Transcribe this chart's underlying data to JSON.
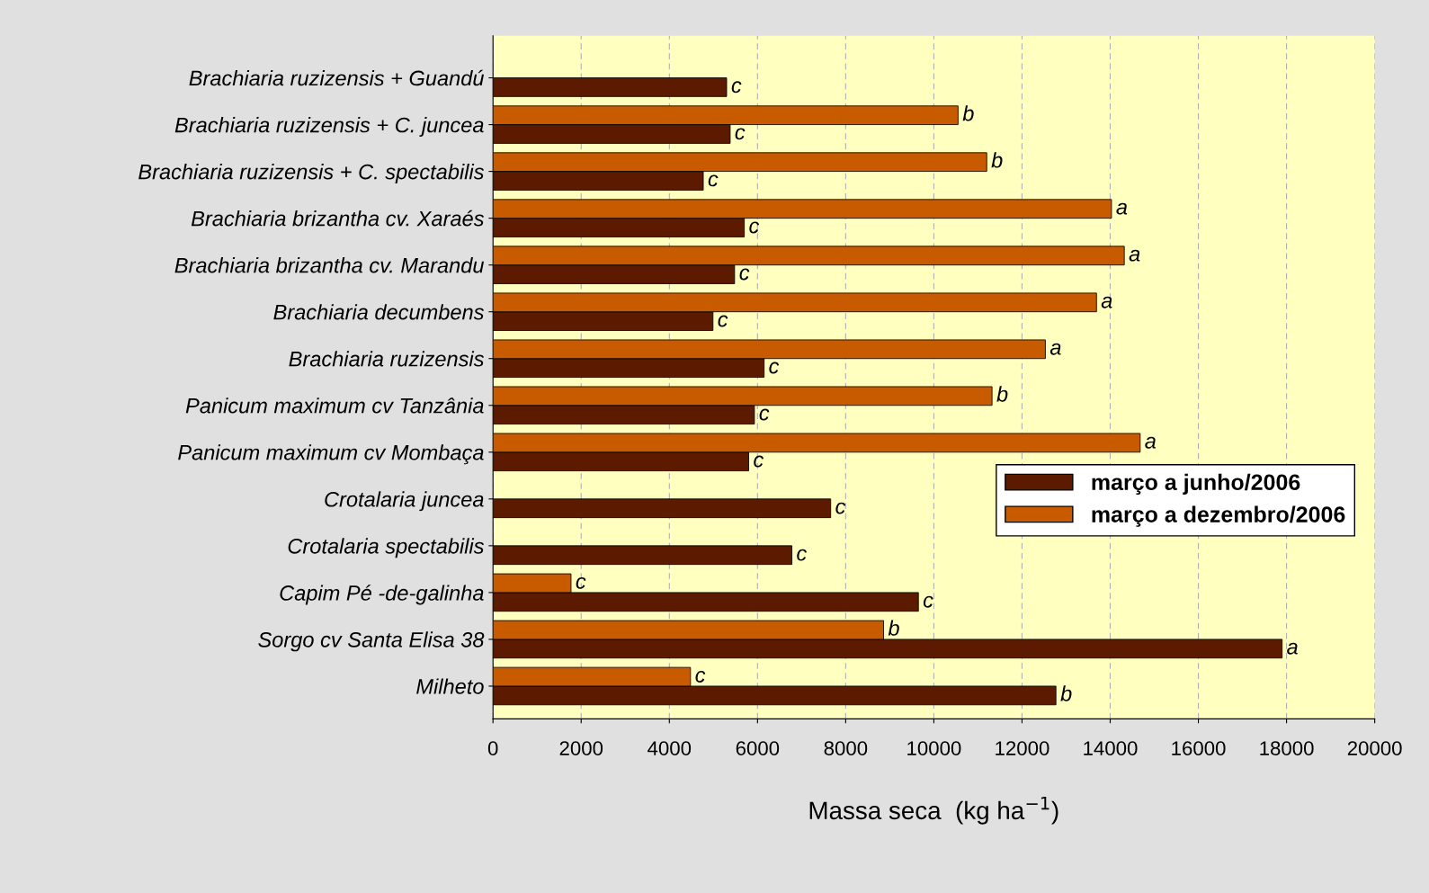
{
  "chart_data": {
    "type": "bar",
    "orientation": "horizontal",
    "xlabel": "Massa seca  (kg ha$^{−1}$)",
    "categories": [
      "Brachiaria ruzizensis + Guandú",
      "Brachiaria ruzizensis + C. juncea",
      "Brachiaria ruzizensis + C. spectabilis",
      "Brachiaria brizantha cv. Xaraés",
      "Brachiaria brizantha cv. Marandu",
      "Brachiaria decumbens",
      "Brachiaria ruzizensis",
      "Panicum maximum cv Tanzânia",
      "Panicum maximum cv Mombaça",
      "Crotalaria juncea",
      "Crotalaria spectabilis",
      "Capim Pé -de-galinha",
      "Sorgo cv Santa Elisa 38",
      "Milheto"
    ],
    "series": [
      {
        "name": "março a junho/2006",
        "color": "#5c1a00",
        "values": [
          5300,
          5380,
          4770,
          5700,
          5480,
          4990,
          6150,
          5930,
          5800,
          7660,
          6780,
          9650,
          17900,
          12770
        ],
        "value_labels": [
          "c",
          "c",
          "c",
          "c",
          "c",
          "c",
          "c",
          "c",
          "c",
          "c",
          "c",
          "c",
          "a",
          "b"
        ]
      },
      {
        "name": "março a dezembro/2006",
        "color": "#c85a00",
        "values": [
          null,
          10550,
          11200,
          14030,
          14320,
          13690,
          12530,
          11320,
          14680,
          null,
          null,
          1770,
          8860,
          4480
        ],
        "value_labels": [
          null,
          "b",
          "b",
          "a",
          "a",
          "a",
          "a",
          "b",
          "a",
          null,
          null,
          "c",
          "b",
          "c"
        ]
      }
    ],
    "xlim": [
      0,
      20000
    ],
    "xticks": [
      0,
      2000,
      4000,
      6000,
      8000,
      10000,
      12000,
      14000,
      16000,
      18000,
      20000
    ],
    "grid": "x",
    "legend": "right"
  }
}
